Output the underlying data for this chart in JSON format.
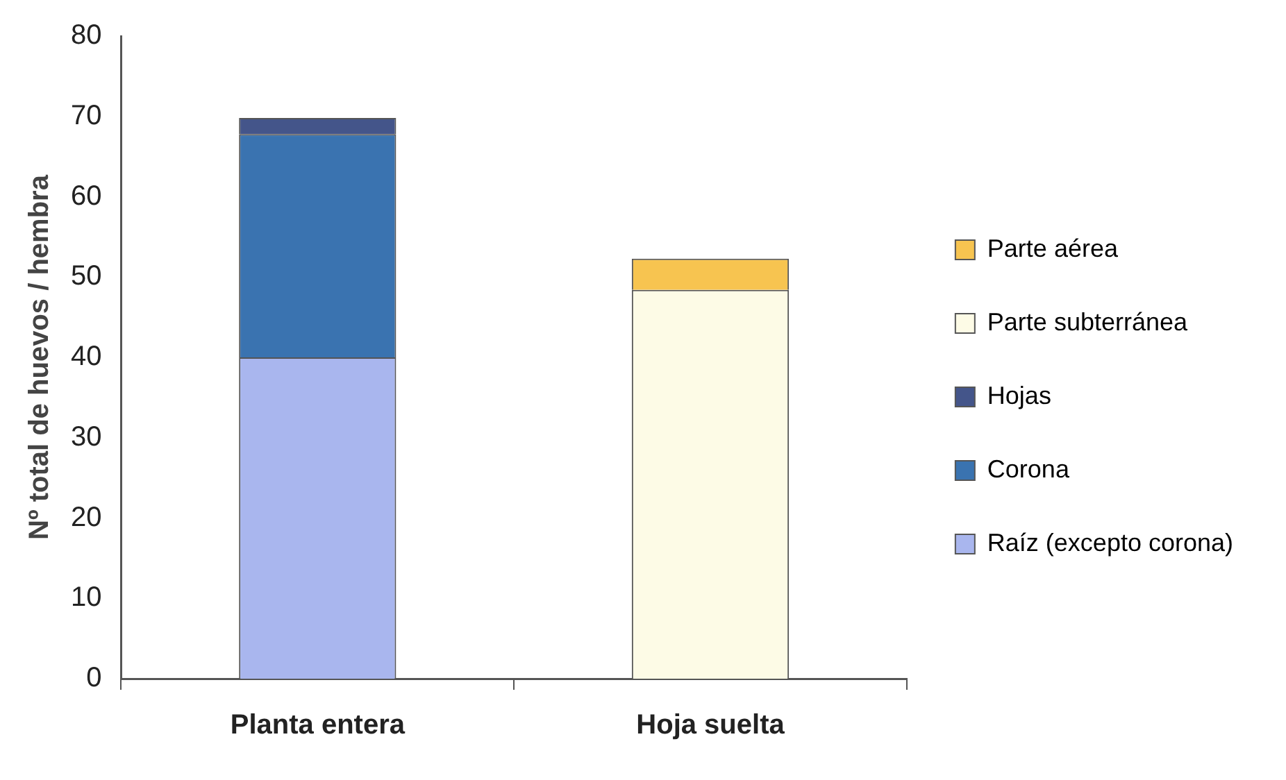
{
  "chart_data": {
    "type": "bar",
    "stacked": true,
    "ylabel": "Nº total de huevos / hembra",
    "categories": [
      "Planta entera",
      "Hoja suelta"
    ],
    "series": [
      {
        "name": "Raíz (excepto corona)",
        "color": "#a9b6ee",
        "values": [
          40,
          null
        ]
      },
      {
        "name": "Corona",
        "color": "#3a73b0",
        "values": [
          27.8,
          null
        ]
      },
      {
        "name": "Hojas",
        "color": "#44558a",
        "values": [
          2,
          null
        ]
      },
      {
        "name": "Parte subterránea",
        "color": "#fdfbe6",
        "values": [
          null,
          48.4
        ]
      },
      {
        "name": "Parte aérea",
        "color": "#f7c450",
        "values": [
          null,
          3.9
        ]
      }
    ],
    "ylim": [
      0,
      80
    ],
    "yticks": [
      0,
      10,
      20,
      30,
      40,
      50,
      60,
      70,
      80
    ],
    "grid": false,
    "legend": "right"
  }
}
